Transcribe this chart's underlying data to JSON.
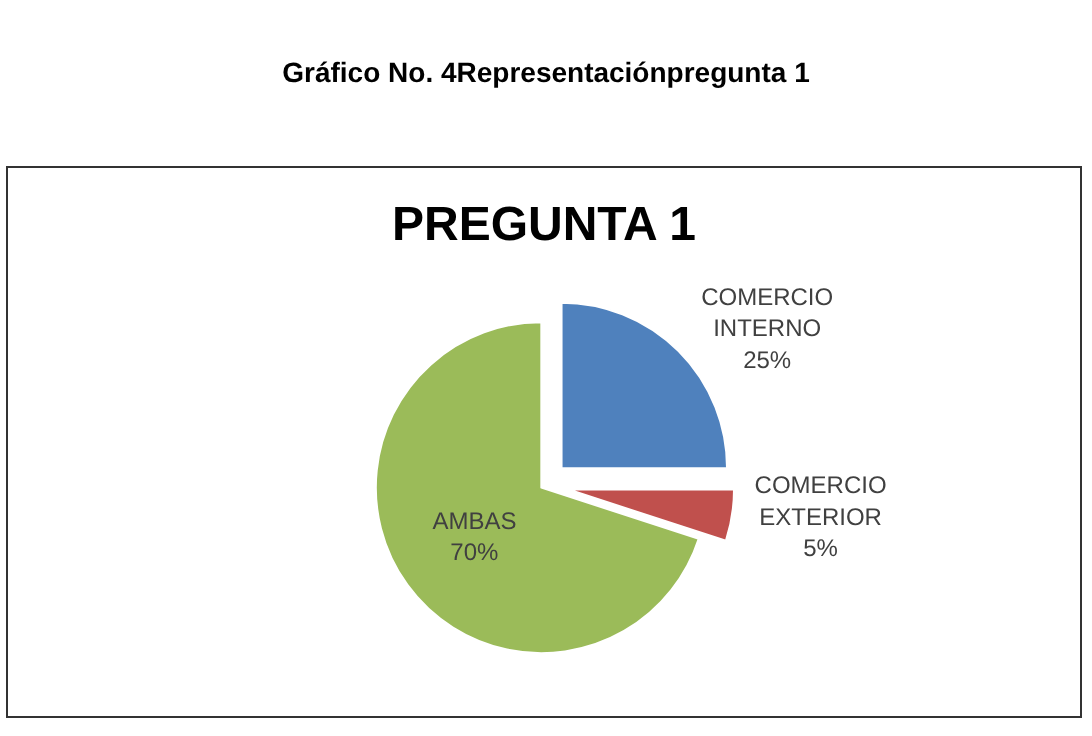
{
  "chart_data": {
    "type": "pie",
    "title": "PREGUNTA 1",
    "annotations": [
      "Gráfico No. 4Representaciónpregunta 1"
    ],
    "categories": [
      "COMERCIO INTERNO",
      "COMERCIO EXTERIOR",
      "AMBAS"
    ],
    "values": [
      25,
      5,
      70
    ],
    "value_labels": [
      "25%",
      "5%",
      "70%"
    ],
    "colors": [
      "#4f81bd",
      "#c0504d",
      "#9bbb59"
    ],
    "legend": false
  }
}
